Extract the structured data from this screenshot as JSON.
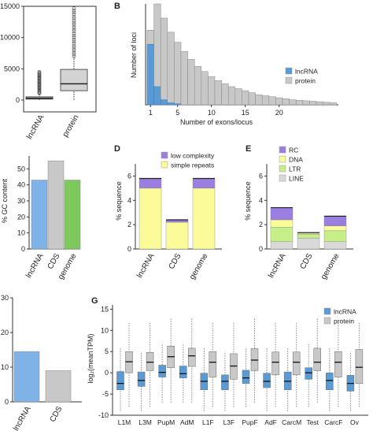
{
  "panels": {
    "a": {
      "label": ""
    },
    "b": {
      "label": "B"
    },
    "c": {
      "label": ""
    },
    "d": {
      "label": "D"
    },
    "e": {
      "label": "E"
    },
    "f": {
      "label": ""
    },
    "g": {
      "label": "G"
    }
  },
  "chart_data": [
    {
      "panel": "a",
      "type": "box",
      "categories": [
        "lncRNA",
        "protein"
      ],
      "yticks": [
        "0",
        "5000",
        "10000",
        "15000"
      ],
      "ylim": [
        0,
        15000
      ],
      "boxes": [
        {
          "whisker_low": 0,
          "q1": 150,
          "median": 300,
          "q3": 520,
          "whisker_high": 1050,
          "outliers_from": 1050,
          "outliers_to": 4500
        },
        {
          "whisker_low": 0,
          "q1": 1500,
          "median": 2600,
          "q3": 4900,
          "whisker_high": 7000,
          "outliers_from": 7000,
          "outliers_to": 15000
        }
      ],
      "colors": {
        "box": "#d3d3d3"
      }
    },
    {
      "panel": "b",
      "type": "bar",
      "xlabel": "Number of exons/locus",
      "ylabel": "Number of loci",
      "xticks": [
        "1",
        "5",
        "10",
        "15",
        "20"
      ],
      "x": [
        1,
        2,
        3,
        4,
        5,
        6,
        7,
        8,
        9,
        10,
        11,
        12,
        13,
        14,
        15,
        16,
        17,
        18,
        19,
        20,
        21,
        22,
        23,
        24,
        25,
        26,
        27,
        28
      ],
      "series": [
        {
          "name": "lncRNA",
          "color": "#5b9bd5",
          "values": [
            0.6,
            0.18,
            0.05,
            0.02,
            0.01,
            0,
            0,
            0,
            0,
            0,
            0,
            0,
            0,
            0,
            0,
            0,
            0,
            0,
            0,
            0,
            0,
            0,
            0,
            0,
            0,
            0,
            0,
            0
          ]
        },
        {
          "name": "protein",
          "color": "#c8c8c8",
          "values": [
            0.74,
            1.0,
            0.86,
            0.72,
            0.62,
            0.53,
            0.45,
            0.38,
            0.33,
            0.28,
            0.24,
            0.21,
            0.18,
            0.16,
            0.14,
            0.12,
            0.1,
            0.09,
            0.08,
            0.07,
            0.06,
            0.05,
            0.045,
            0.04,
            0.035,
            0.03,
            0.025,
            0.02
          ]
        }
      ],
      "legend": "bottom-right"
    },
    {
      "panel": "c",
      "type": "bar",
      "ylabel": "% GC content",
      "yticks": [
        "0",
        "10",
        "20",
        "30",
        "40",
        "50"
      ],
      "ylim": [
        0,
        58
      ],
      "categories": [
        "lncRNA",
        "CDS",
        "genome"
      ],
      "values": [
        43,
        55,
        43
      ],
      "colors": [
        "#7fb3e8",
        "#c8c8c8",
        "#7ec95d"
      ]
    },
    {
      "panel": "d",
      "type": "bar",
      "stacked": true,
      "ylabel": "% sequence",
      "yticks": [
        "0",
        "2",
        "4",
        "6"
      ],
      "ylim": [
        0,
        7
      ],
      "categories": [
        "lncRNA",
        "CDS",
        "genome"
      ],
      "series": [
        {
          "name": "simple repeats",
          "color": "#fbfb9a",
          "values": [
            5.0,
            2.2,
            5.0
          ]
        },
        {
          "name": "low complexity",
          "color": "#9a7fe0",
          "values": [
            0.8,
            0.2,
            0.8
          ]
        }
      ],
      "legend": "top-right"
    },
    {
      "panel": "e",
      "type": "bar",
      "stacked": true,
      "ylabel": "% sequence",
      "yticks": [
        "0",
        "2",
        "4",
        "6"
      ],
      "ylim": [
        0,
        7
      ],
      "categories": [
        "lncRNA",
        "CDS",
        "genome"
      ],
      "series": [
        {
          "name": "LINE",
          "color": "#d9d9d9",
          "values": [
            0.6,
            0.9,
            0.6
          ]
        },
        {
          "name": "LTR",
          "color": "#c6ef8a",
          "values": [
            1.2,
            0.3,
            0.9
          ]
        },
        {
          "name": "DNA",
          "color": "#fbfb9a",
          "values": [
            0.6,
            0.1,
            0.4
          ]
        },
        {
          "name": "RC",
          "color": "#9a7fe0",
          "values": [
            1.0,
            0.05,
            0.8
          ]
        }
      ],
      "legend": "top-right"
    },
    {
      "panel": "f",
      "type": "bar",
      "yticks": [
        "0",
        "10",
        "20",
        "30"
      ],
      "ylim": [
        0,
        30
      ],
      "categories": [
        "lncRNA",
        "CDS"
      ],
      "values": [
        14.5,
        9.0
      ],
      "colors": [
        "#7fb3e8",
        "#c8c8c8"
      ]
    },
    {
      "panel": "g",
      "type": "box",
      "ylabel": "log₂(meanTPM)",
      "yticks": [
        "-10",
        "-5",
        "0",
        "5",
        "10",
        "15"
      ],
      "ylim": [
        -10,
        16
      ],
      "categories": [
        "L1M",
        "L3M",
        "PupM",
        "AdM",
        "L1F",
        "L3F",
        "PupF",
        "AdF",
        "CarcM",
        "Test",
        "CarcF",
        "Ov"
      ],
      "series": [
        {
          "name": "lncRNA",
          "color": "#5b9bd5",
          "boxes": [
            {
              "low": -9,
              "q1": -4,
              "median": -2.5,
              "q3": 0.3,
              "high": 6
            },
            {
              "low": -9,
              "q1": -3.2,
              "median": -1.8,
              "q3": 0.2,
              "high": 5
            },
            {
              "low": -7,
              "q1": -1,
              "median": 0.1,
              "q3": 1.8,
              "high": 7
            },
            {
              "low": -7,
              "q1": -1.2,
              "median": -0.2,
              "q3": 1.6,
              "high": 7
            },
            {
              "low": -9,
              "q1": -4,
              "median": -2,
              "q3": -0.1,
              "high": 6
            },
            {
              "low": -9,
              "q1": -4,
              "median": -2,
              "q3": -0.5,
              "high": 5
            },
            {
              "low": -8,
              "q1": -2.5,
              "median": -1.2,
              "q3": 0.6,
              "high": 6
            },
            {
              "low": -9,
              "q1": -3.5,
              "median": -2,
              "q3": -0.1,
              "high": 6
            },
            {
              "low": -9,
              "q1": -4,
              "median": -2,
              "q3": 0.2,
              "high": 6
            },
            {
              "low": -8,
              "q1": -1.5,
              "median": 0,
              "q3": 1.2,
              "high": 7
            },
            {
              "low": -9,
              "q1": -4,
              "median": -1.8,
              "q3": 0,
              "high": 6
            },
            {
              "low": -9,
              "q1": -4.3,
              "median": -2.5,
              "q3": -0.6,
              "high": 5
            }
          ]
        },
        {
          "name": "protein",
          "color": "#c8c8c8",
          "boxes": [
            {
              "low": -8,
              "q1": 0,
              "median": 2.6,
              "q3": 5,
              "high": 12
            },
            {
              "low": -8,
              "q1": 0.5,
              "median": 2.5,
              "q3": 4.8,
              "high": 12
            },
            {
              "low": -7,
              "q1": 1.2,
              "median": 3.8,
              "q3": 6.3,
              "high": 13
            },
            {
              "low": -7,
              "q1": 1.5,
              "median": 4,
              "q3": 5.8,
              "high": 13
            },
            {
              "low": -8,
              "q1": -1,
              "median": 2.5,
              "q3": 5,
              "high": 12
            },
            {
              "low": -8,
              "q1": -1.5,
              "median": 1.6,
              "q3": 4.5,
              "high": 12
            },
            {
              "low": -7,
              "q1": 0.5,
              "median": 3,
              "q3": 5.7,
              "high": 13
            },
            {
              "low": -8,
              "q1": -0.5,
              "median": 2.5,
              "q3": 4.9,
              "high": 12
            },
            {
              "low": -8,
              "q1": -0.5,
              "median": 2.5,
              "q3": 4.9,
              "high": 12
            },
            {
              "low": -7,
              "q1": 0.5,
              "median": 2.5,
              "q3": 5.8,
              "high": 13
            },
            {
              "low": -8,
              "q1": -1,
              "median": 2.5,
              "q3": 5,
              "high": 12
            },
            {
              "low": -8,
              "q1": -2.5,
              "median": 1.3,
              "q3": 5.5,
              "high": 12
            }
          ]
        }
      ],
      "legend": "top-right"
    }
  ]
}
